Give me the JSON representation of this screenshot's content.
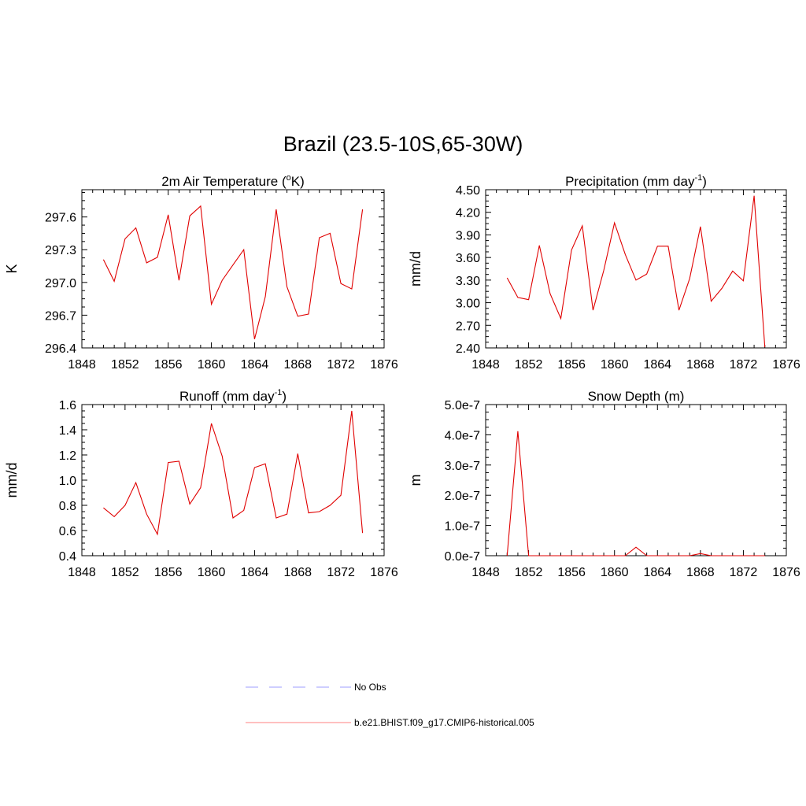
{
  "title": "Brazil (23.5-10S,65-30W)",
  "legend": [
    {
      "label": "No Obs",
      "color": "#b0b0ff",
      "style": "dashed"
    },
    {
      "label": "b.e21.BHIST.f09_g17.CMIP6-historical.005",
      "color": "#ff9a9a",
      "style": "solid"
    }
  ],
  "series_color": "#e00000",
  "chart_data": [
    {
      "type": "line",
      "title": "2m Air Temperature (",
      "title_sup": "o",
      "title_end": "K)",
      "ylabel": "K",
      "xlim": [
        1848,
        1876
      ],
      "ylim": [
        296.4,
        297.85
      ],
      "xticks": [
        1848,
        1852,
        1856,
        1860,
        1864,
        1868,
        1872,
        1876
      ],
      "yticks": [
        296.4,
        296.7,
        297.0,
        297.3,
        297.6
      ],
      "ytick_labels": [
        "296.4",
        "296.7",
        "297.0",
        "297.3",
        "297.6"
      ],
      "yminor": 0.075,
      "x": [
        1850,
        1851,
        1852,
        1853,
        1854,
        1855,
        1856,
        1857,
        1858,
        1859,
        1860,
        1861,
        1862,
        1863,
        1864,
        1865,
        1866,
        1867,
        1868,
        1869,
        1870,
        1871,
        1872,
        1873,
        1874
      ],
      "y": [
        297.21,
        297.01,
        297.4,
        297.5,
        297.18,
        297.23,
        297.62,
        297.02,
        297.61,
        297.7,
        296.8,
        297.02,
        297.16,
        297.3,
        296.48,
        296.87,
        297.67,
        296.96,
        296.69,
        296.71,
        297.41,
        297.45,
        296.99,
        296.94,
        297.67
      ]
    },
    {
      "type": "line",
      "title": "Precipitation (mm day",
      "title_sup": "-1",
      "title_end": ")",
      "ylabel": "mm/d",
      "xlim": [
        1848,
        1876
      ],
      "ylim": [
        2.4,
        4.5
      ],
      "xticks": [
        1848,
        1852,
        1856,
        1860,
        1864,
        1868,
        1872,
        1876
      ],
      "yticks": [
        2.4,
        2.7,
        3.0,
        3.3,
        3.6,
        3.9,
        4.2,
        4.5
      ],
      "ytick_labels": [
        "2.40",
        "2.70",
        "3.00",
        "3.30",
        "3.60",
        "3.90",
        "4.20",
        "4.50"
      ],
      "yminor": 0.075,
      "x": [
        1850,
        1851,
        1852,
        1853,
        1854,
        1855,
        1856,
        1857,
        1858,
        1859,
        1860,
        1861,
        1862,
        1863,
        1864,
        1865,
        1866,
        1867,
        1868,
        1869,
        1870,
        1871,
        1872,
        1873,
        1874
      ],
      "y": [
        3.33,
        3.07,
        3.04,
        3.76,
        3.12,
        2.79,
        3.7,
        4.02,
        2.9,
        3.43,
        4.06,
        3.64,
        3.3,
        3.38,
        3.75,
        3.75,
        2.9,
        3.32,
        4.01,
        3.02,
        3.19,
        3.42,
        3.29,
        4.42,
        2.41
      ]
    },
    {
      "type": "line",
      "title": "Runoff (mm day",
      "title_sup": "-1",
      "title_end": ")",
      "ylabel": "mm/d",
      "xlim": [
        1848,
        1876
      ],
      "ylim": [
        0.4,
        1.6
      ],
      "xticks": [
        1848,
        1852,
        1856,
        1860,
        1864,
        1868,
        1872,
        1876
      ],
      "yticks": [
        0.4,
        0.6,
        0.8,
        1.0,
        1.2,
        1.4,
        1.6
      ],
      "ytick_labels": [
        "0.4",
        "0.6",
        "0.8",
        "1.0",
        "1.2",
        "1.4",
        "1.6"
      ],
      "yminor": 0.05,
      "x": [
        1850,
        1851,
        1852,
        1853,
        1854,
        1855,
        1856,
        1857,
        1858,
        1859,
        1860,
        1861,
        1862,
        1863,
        1864,
        1865,
        1866,
        1867,
        1868,
        1869,
        1870,
        1871,
        1872,
        1873,
        1874
      ],
      "y": [
        0.78,
        0.71,
        0.8,
        0.98,
        0.73,
        0.57,
        1.14,
        1.15,
        0.81,
        0.94,
        1.45,
        1.19,
        0.7,
        0.76,
        1.1,
        1.13,
        0.7,
        0.73,
        1.21,
        0.74,
        0.75,
        0.8,
        0.88,
        1.55,
        0.58
      ]
    },
    {
      "type": "line",
      "title": "Snow Depth (m)",
      "title_sup": "",
      "title_end": "",
      "ylabel": "m",
      "xlim": [
        1848,
        1876
      ],
      "ylim": [
        0,
        5e-07
      ],
      "xticks": [
        1848,
        1852,
        1856,
        1860,
        1864,
        1868,
        1872,
        1876
      ],
      "yticks": [
        0,
        1e-07,
        2e-07,
        3e-07,
        4e-07,
        5e-07
      ],
      "ytick_labels": [
        "0.0e-7",
        "1.0e-7",
        "2.0e-7",
        "3.0e-7",
        "4.0e-7",
        "5.0e-7"
      ],
      "yminor": 2.5e-08,
      "x": [
        1850,
        1851,
        1852,
        1853,
        1854,
        1855,
        1856,
        1857,
        1858,
        1859,
        1860,
        1861,
        1862,
        1863,
        1864,
        1865,
        1866,
        1867,
        1868,
        1869,
        1870,
        1871,
        1872,
        1873,
        1874
      ],
      "y": [
        0,
        4.12e-07,
        0,
        0,
        0,
        0,
        0,
        0,
        0,
        0,
        0,
        0,
        2.8e-08,
        0,
        0,
        0,
        0,
        0,
        7e-09,
        0,
        0,
        0,
        0,
        0,
        0
      ]
    }
  ]
}
